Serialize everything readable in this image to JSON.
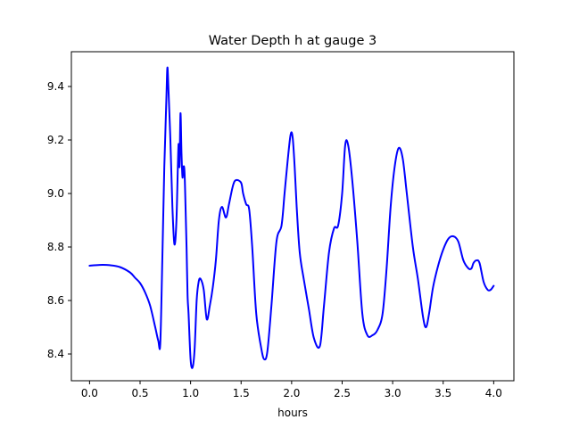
{
  "chart_data": {
    "type": "line",
    "title": "Water Depth h at gauge 3",
    "xlabel": "hours",
    "ylabel": "",
    "xlim": [
      -0.18,
      4.2
    ],
    "ylim": [
      8.3,
      9.53
    ],
    "xticks": [
      0.0,
      0.5,
      1.0,
      1.5,
      2.0,
      2.5,
      3.0,
      3.5,
      4.0
    ],
    "xtick_labels": [
      "0.0",
      "0.5",
      "1.0",
      "1.5",
      "2.0",
      "2.5",
      "3.0",
      "3.5",
      "4.0"
    ],
    "yticks": [
      8.4,
      8.6,
      8.8,
      9.0,
      9.2,
      9.4
    ],
    "ytick_labels": [
      "8.4",
      "8.6",
      "8.8",
      "9.0",
      "9.2",
      "9.4"
    ],
    "grid": false,
    "legend": "none",
    "colors": {
      "line": "#0000ff",
      "axes": "#000000",
      "background": "#ffffff"
    },
    "series": [
      {
        "x": [
          0.0,
          0.1,
          0.2,
          0.3,
          0.4,
          0.45,
          0.5,
          0.55,
          0.6,
          0.65,
          0.68,
          0.7,
          0.72,
          0.74,
          0.76,
          0.77,
          0.78,
          0.8,
          0.82,
          0.84,
          0.86,
          0.88,
          0.89,
          0.9,
          0.91,
          0.92,
          0.93,
          0.94,
          0.95,
          0.96,
          0.97,
          0.98,
          1.0,
          1.02,
          1.04,
          1.06,
          1.08,
          1.1,
          1.13,
          1.16,
          1.19,
          1.22,
          1.25,
          1.28,
          1.31,
          1.35,
          1.38,
          1.42,
          1.45,
          1.5,
          1.52,
          1.55,
          1.58,
          1.61,
          1.65,
          1.7,
          1.73,
          1.76,
          1.8,
          1.85,
          1.9,
          1.93,
          1.96,
          1.99,
          2.01,
          2.03,
          2.05,
          2.08,
          2.12,
          2.17,
          2.22,
          2.28,
          2.32,
          2.37,
          2.42,
          2.46,
          2.5,
          2.53,
          2.56,
          2.6,
          2.65,
          2.7,
          2.75,
          2.8,
          2.85,
          2.9,
          2.94,
          2.98,
          3.02,
          3.06,
          3.1,
          3.14,
          3.2,
          3.25,
          3.3,
          3.33,
          3.36,
          3.4,
          3.45,
          3.5,
          3.55,
          3.6,
          3.65,
          3.7,
          3.75,
          3.78,
          3.8,
          3.83,
          3.86,
          3.9,
          3.94,
          3.97,
          4.0
        ],
        "y": [
          8.73,
          8.733,
          8.732,
          8.725,
          8.705,
          8.685,
          8.665,
          8.63,
          8.58,
          8.5,
          8.45,
          8.44,
          8.75,
          9.1,
          9.35,
          9.47,
          9.4,
          9.2,
          8.95,
          8.81,
          8.9,
          9.18,
          9.1,
          9.3,
          9.15,
          9.06,
          9.1,
          9.08,
          8.95,
          8.8,
          8.62,
          8.55,
          8.38,
          8.35,
          8.42,
          8.6,
          8.67,
          8.68,
          8.64,
          8.53,
          8.58,
          8.65,
          8.75,
          8.9,
          8.95,
          8.91,
          8.96,
          9.03,
          9.05,
          9.04,
          9.0,
          8.96,
          8.94,
          8.8,
          8.55,
          8.42,
          8.38,
          8.41,
          8.58,
          8.82,
          8.88,
          9.0,
          9.12,
          9.22,
          9.21,
          9.1,
          8.95,
          8.78,
          8.68,
          8.57,
          8.46,
          8.43,
          8.58,
          8.78,
          8.87,
          8.88,
          9.0,
          9.18,
          9.18,
          9.05,
          8.82,
          8.55,
          8.47,
          8.47,
          8.49,
          8.55,
          8.72,
          8.95,
          9.1,
          9.17,
          9.13,
          9.0,
          8.8,
          8.68,
          8.54,
          8.5,
          8.55,
          8.65,
          8.73,
          8.79,
          8.83,
          8.84,
          8.82,
          8.75,
          8.72,
          8.72,
          8.74,
          8.75,
          8.74,
          8.67,
          8.64,
          8.64,
          8.655
        ]
      }
    ]
  }
}
